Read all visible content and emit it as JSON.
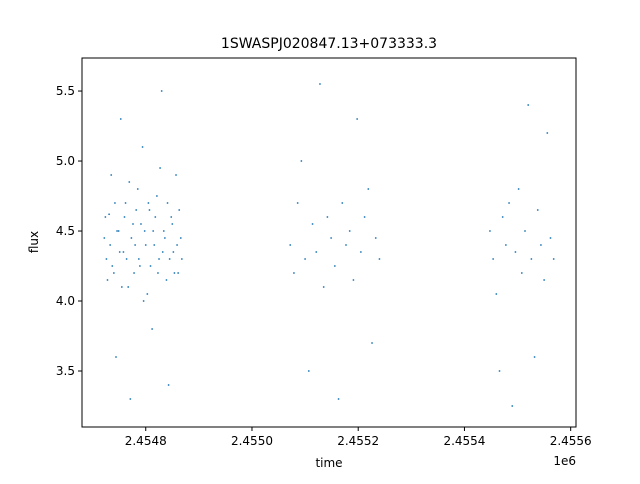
{
  "chart_data": {
    "type": "scatter",
    "title": "1SWASPJ020847.13+073333.3",
    "x_label": "time",
    "y_label": "flux",
    "x_offset_text": "1e6",
    "color": "#1f77b4",
    "xlim": [
      2454680,
      2455610
    ],
    "ylim": [
      3.1,
      5.736
    ],
    "xticks": [
      {
        "value": 2454800,
        "label": "2.4548"
      },
      {
        "value": 2455000,
        "label": "2.4550"
      },
      {
        "value": 2455200,
        "label": "2.4552"
      },
      {
        "value": 2455400,
        "label": "2.4554"
      },
      {
        "value": 2455600,
        "label": "2.4556"
      }
    ],
    "yticks": [
      3.5,
      {
        "value": 4,
        "label": "4.0"
      },
      4.5,
      {
        "value": 5,
        "label": "5.0"
      },
      5.5
    ],
    "x": [
      2454722,
      2454726,
      2454731,
      2454735,
      2454740,
      2454744,
      2454749,
      2454753,
      2454758,
      2454762,
      2454767,
      2454771,
      2454776,
      2454780,
      2454785,
      2454789,
      2454794,
      2454798,
      2454803,
      2454807,
      2454812,
      2454816,
      2454821,
      2454825,
      2454830,
      2454834,
      2454839,
      2454843,
      2454848,
      2454852,
      2454857,
      2454861,
      2454866,
      2454724,
      2454728,
      2454733,
      2454737,
      2454742,
      2454746,
      2454751,
      2454755,
      2454760,
      2454764,
      2454769,
      2454773,
      2454778,
      2454782,
      2454787,
      2454791,
      2454796,
      2454800,
      2454805,
      2454809,
      2454814,
      2454818,
      2454823,
      2454827,
      2454832,
      2454836,
      2454841,
      2454845,
      2454850,
      2454854,
      2454859,
      2454863,
      2454868,
      2455072,
      2455079,
      2455086,
      2455093,
      2455100,
      2455107,
      2455114,
      2455121,
      2455128,
      2455135,
      2455142,
      2455149,
      2455156,
      2455163,
      2455170,
      2455177,
      2455184,
      2455191,
      2455198,
      2455205,
      2455212,
      2455219,
      2455226,
      2455233,
      2455240,
      2455448,
      2455454,
      2455460,
      2455466,
      2455472,
      2455478,
      2455484,
      2455490,
      2455496,
      2455502,
      2455508,
      2455514,
      2455520,
      2455526,
      2455532,
      2455538,
      2455544,
      2455550,
      2455556,
      2455562,
      2455568
    ],
    "values": [
      4.45,
      4.3,
      4.62,
      4.9,
      4.2,
      3.6,
      4.5,
      5.3,
      4.35,
      4.7,
      4.1,
      3.3,
      4.55,
      4.4,
      4.8,
      4.25,
      5.1,
      4.5,
      4.05,
      4.65,
      3.8,
      4.4,
      4.75,
      4.3,
      5.5,
      4.5,
      4.15,
      3.4,
      4.6,
      4.35,
      4.9,
      4.2,
      4.45,
      4.6,
      4.15,
      4.4,
      4.25,
      4.7,
      4.5,
      4.35,
      4.1,
      4.6,
      4.3,
      4.85,
      4.45,
      4.2,
      4.65,
      4.3,
      4.55,
      4.0,
      4.4,
      4.7,
      4.25,
      4.5,
      4.6,
      4.2,
      4.95,
      4.35,
      4.45,
      4.7,
      4.3,
      4.55,
      4.2,
      4.4,
      4.65,
      4.3,
      4.4,
      4.2,
      4.7,
      5.0,
      4.3,
      3.5,
      4.55,
      4.35,
      5.55,
      4.1,
      4.6,
      4.45,
      4.25,
      3.3,
      4.7,
      4.4,
      4.5,
      4.15,
      5.3,
      4.35,
      4.6,
      4.8,
      3.7,
      4.45,
      4.3,
      4.5,
      4.3,
      4.05,
      3.5,
      4.6,
      4.4,
      4.7,
      3.25,
      4.35,
      4.8,
      4.2,
      4.5,
      5.4,
      4.3,
      3.6,
      4.65,
      4.4,
      4.15,
      5.2,
      4.45,
      4.3
    ]
  }
}
